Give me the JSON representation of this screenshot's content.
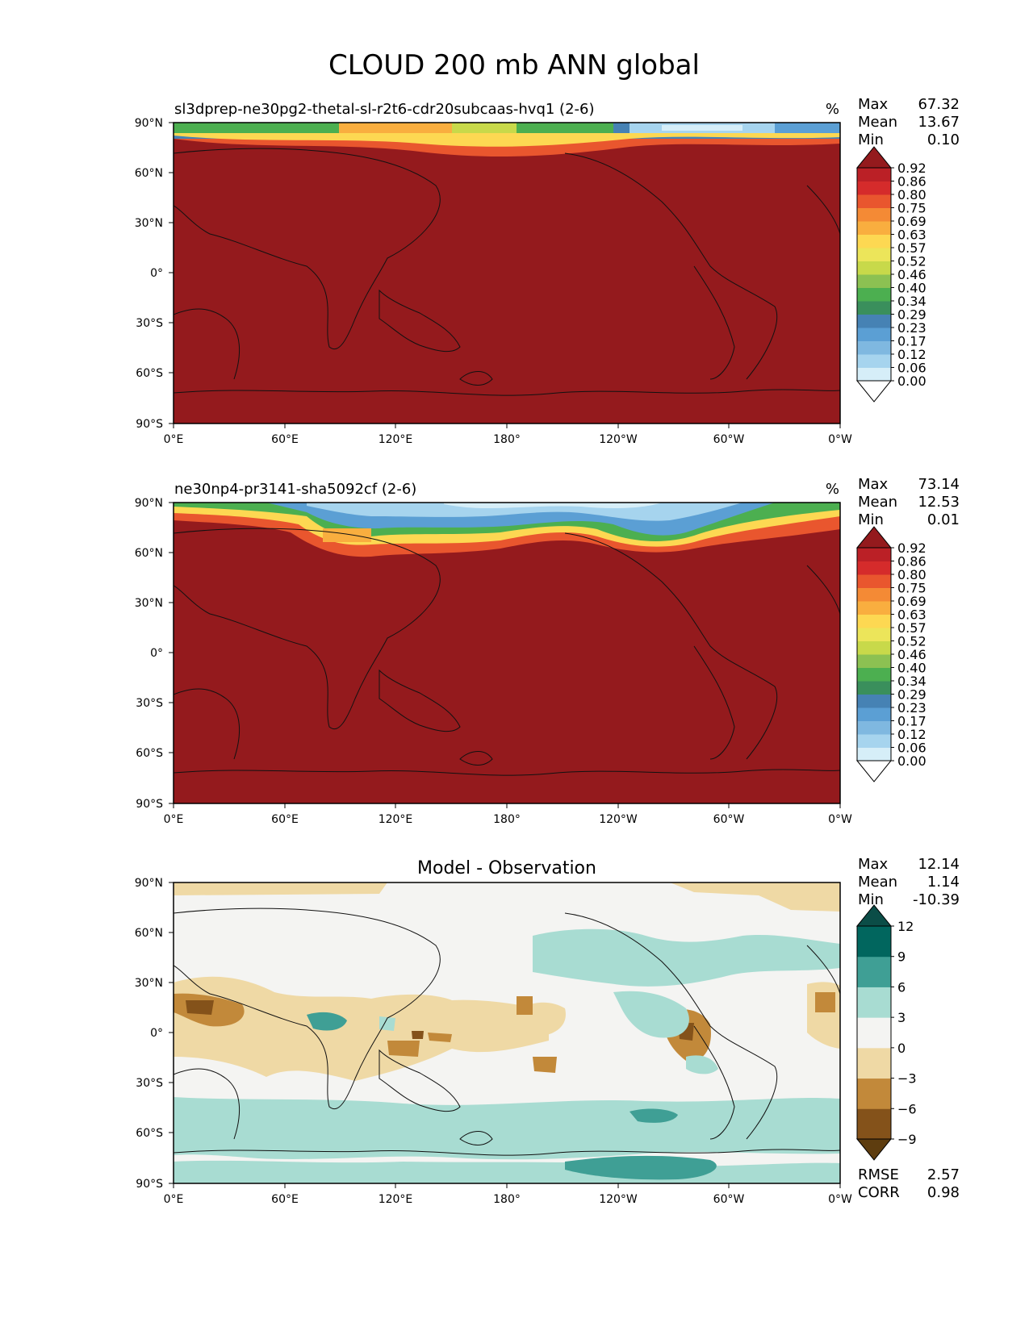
{
  "figure_title": "CLOUD 200 mb ANN global",
  "lat_ticks": [
    "90°N",
    "60°N",
    "30°N",
    "0°",
    "30°S",
    "60°S",
    "90°S"
  ],
  "lon_ticks": [
    "0°E",
    "60°E",
    "120°E",
    "180°",
    "120°W",
    "60°W",
    "0°W"
  ],
  "panels": [
    {
      "id": "test",
      "title_left": "sl3dprep-ne30pg2-thetal-sl-r2t6-cdr20subcaas-hvq1 (2-6)",
      "title_center": "",
      "units": "%",
      "stats": [
        {
          "label": "Max",
          "value": "67.32"
        },
        {
          "label": "Mean",
          "value": "13.67"
        },
        {
          "label": "Min",
          "value": "0.10"
        }
      ],
      "colorbar": {
        "levels": [
          "0.00",
          "0.06",
          "0.12",
          "0.17",
          "0.23",
          "0.29",
          "0.34",
          "0.40",
          "0.46",
          "0.52",
          "0.57",
          "0.63",
          "0.69",
          "0.75",
          "0.80",
          "0.86",
          "0.92"
        ],
        "colors": [
          "#ffffff",
          "#d6eef8",
          "#a6d4ee",
          "#7fb8e0",
          "#5b9fd4",
          "#4682b4",
          "#3a8f5c",
          "#4caf50",
          "#8cc152",
          "#c8d94a",
          "#ece55a",
          "#fdd852",
          "#f9ae3f",
          "#f48a35",
          "#e9562e",
          "#d52b2b",
          "#bb2026",
          "#941a1d"
        ],
        "extend": "both"
      },
      "stats_footer": []
    },
    {
      "id": "reference",
      "title_left": "ne30np4-pr3141-sha5092cf (2-6)",
      "title_center": "",
      "units": "%",
      "stats": [
        {
          "label": "Max",
          "value": "73.14"
        },
        {
          "label": "Mean",
          "value": "12.53"
        },
        {
          "label": "Min",
          "value": "0.01"
        }
      ],
      "colorbar": {
        "levels": [
          "0.00",
          "0.06",
          "0.12",
          "0.17",
          "0.23",
          "0.29",
          "0.34",
          "0.40",
          "0.46",
          "0.52",
          "0.57",
          "0.63",
          "0.69",
          "0.75",
          "0.80",
          "0.86",
          "0.92"
        ],
        "colors": [
          "#ffffff",
          "#d6eef8",
          "#a6d4ee",
          "#7fb8e0",
          "#5b9fd4",
          "#4682b4",
          "#3a8f5c",
          "#4caf50",
          "#8cc152",
          "#c8d94a",
          "#ece55a",
          "#fdd852",
          "#f9ae3f",
          "#f48a35",
          "#e9562e",
          "#d52b2b",
          "#bb2026",
          "#941a1d"
        ],
        "extend": "both"
      },
      "stats_footer": []
    },
    {
      "id": "difference",
      "title_left": "",
      "title_center": "Model - Observation",
      "units": "",
      "stats": [
        {
          "label": "Max",
          "value": "12.14"
        },
        {
          "label": "Mean",
          "value": "1.14"
        },
        {
          "label": "Min",
          "value": "-10.39"
        }
      ],
      "colorbar": {
        "levels": [
          "−9",
          "−6",
          "−3",
          "0",
          "3",
          "6",
          "9",
          "12"
        ],
        "colors": [
          "#5e3d0f",
          "#84521a",
          "#c2893a",
          "#efd9a5",
          "#f4f4f2",
          "#a8dcd2",
          "#3f9f95",
          "#01665e",
          "#0b4d47"
        ],
        "extend": "both"
      },
      "stats_footer": [
        {
          "label": "RMSE",
          "value": "2.57"
        },
        {
          "label": "CORR",
          "value": "0.98"
        }
      ]
    }
  ],
  "chart_data": [
    {
      "type": "heatmap",
      "title": "sl3dprep-ne30pg2-thetal-sl-r2t6-cdr20subcaas-hvq1 (2-6)",
      "units": "%",
      "xlabel": "",
      "ylabel": "",
      "xlim": [
        0,
        360
      ],
      "ylim": [
        -90,
        90
      ],
      "description_of_field": "Cloud fraction at 200 mb; high values (>0.92) over nearly the entire globe, lower values only in a band near the North Pole",
      "stats": {
        "max": 67.32,
        "mean": 13.67,
        "min": 0.1
      },
      "colorbar_levels": [
        0.0,
        0.06,
        0.12,
        0.17,
        0.23,
        0.29,
        0.34,
        0.4,
        0.46,
        0.52,
        0.57,
        0.63,
        0.69,
        0.75,
        0.8,
        0.86,
        0.92
      ]
    },
    {
      "type": "heatmap",
      "title": "ne30np4-pr3141-sha5092cf (2-6)",
      "units": "%",
      "xlim": [
        0,
        360
      ],
      "ylim": [
        -90,
        90
      ],
      "stats": {
        "max": 73.14,
        "mean": 12.53,
        "min": 0.01
      },
      "colorbar_levels": [
        0.0,
        0.06,
        0.12,
        0.17,
        0.23,
        0.29,
        0.34,
        0.4,
        0.46,
        0.52,
        0.57,
        0.63,
        0.69,
        0.75,
        0.8,
        0.86,
        0.92
      ]
    },
    {
      "type": "heatmap",
      "title": "Model - Observation",
      "xlim": [
        0,
        360
      ],
      "ylim": [
        -90,
        90
      ],
      "stats": {
        "max": 12.14,
        "mean": 1.14,
        "min": -10.39,
        "rmse": 2.57,
        "corr": 0.98
      },
      "colorbar_levels": [
        -9,
        -6,
        -3,
        0,
        3,
        6,
        9,
        12
      ]
    }
  ]
}
